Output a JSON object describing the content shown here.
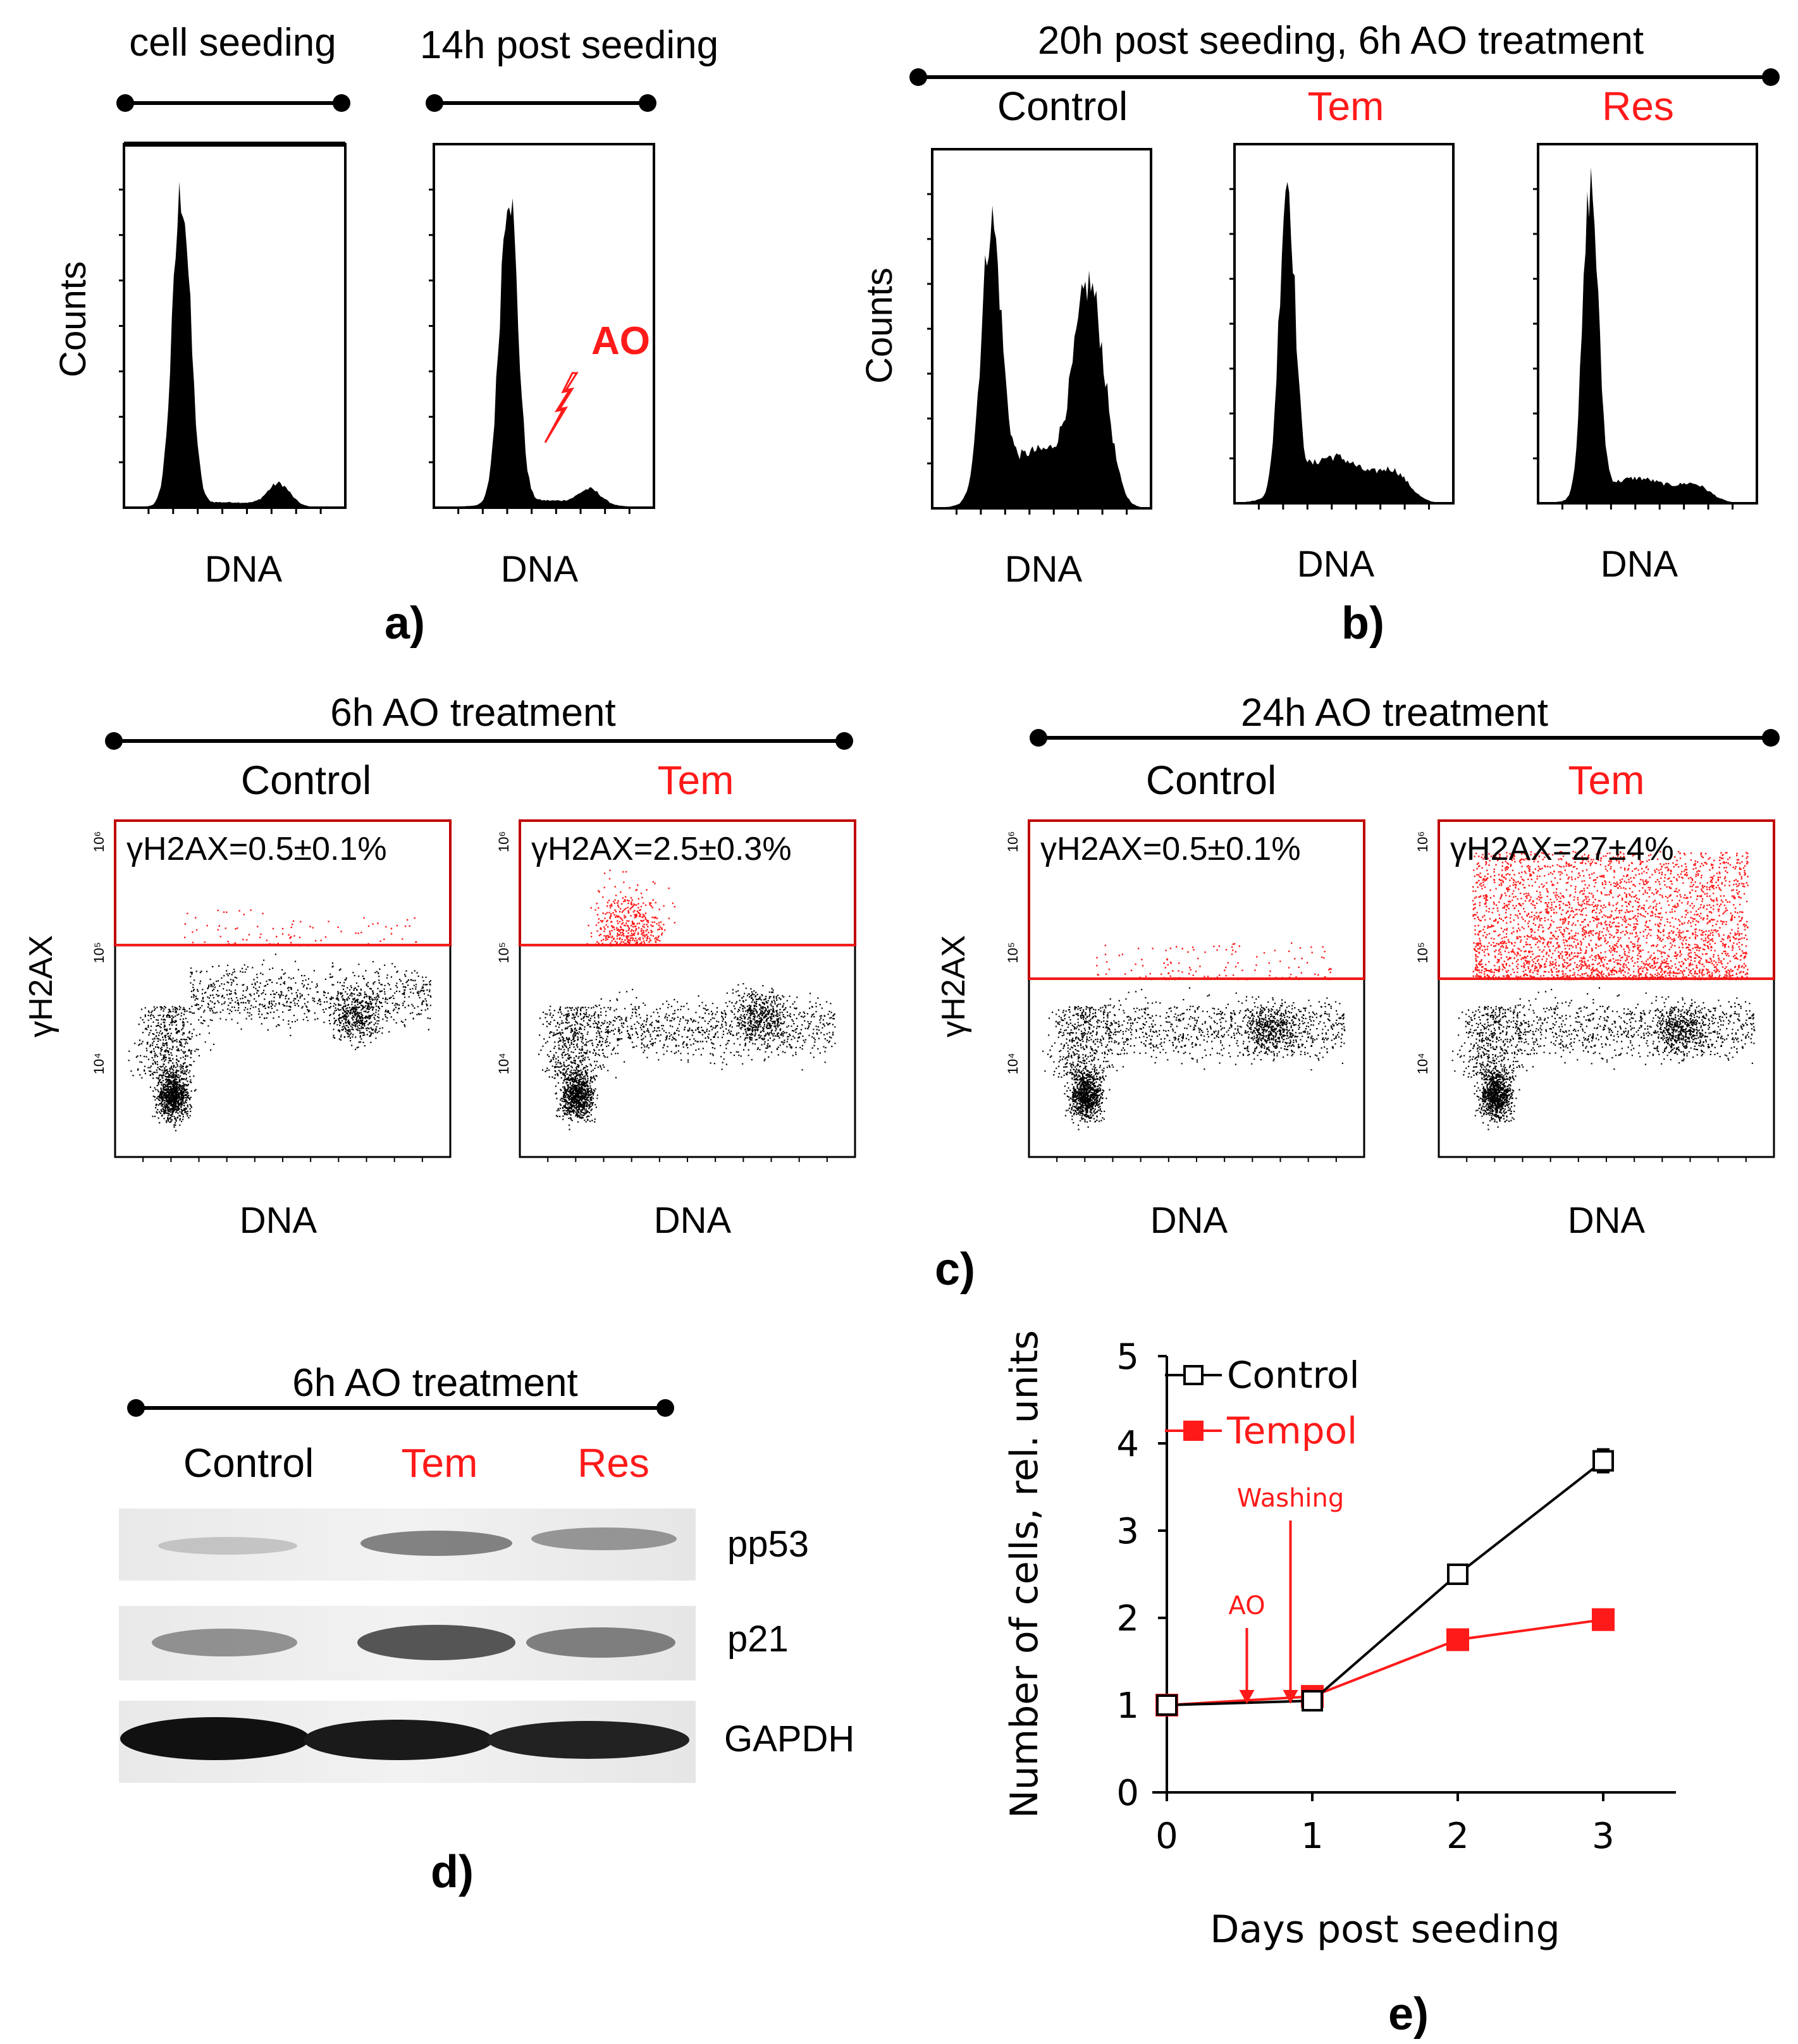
{
  "panel_a": {
    "headers": [
      "cell seeding",
      "14h post seeding"
    ],
    "ylabel": "Counts",
    "xlabels": [
      "DNA",
      "DNA"
    ],
    "annotation": "AO",
    "letter": "a)"
  },
  "panel_b": {
    "header": "20h post seeding, 6h AO treatment",
    "conditions": [
      "Control",
      "Tem",
      "Res"
    ],
    "ylabel": "Counts",
    "xlabels": [
      "DNA",
      "DNA",
      "DNA"
    ],
    "letter": "b)"
  },
  "panel_c": {
    "groups": [
      {
        "header": "6h AO treatment",
        "conditions": [
          "Control",
          "Tem"
        ],
        "values": [
          "γH2AX=0.5±0.1%",
          "γH2AX=2.5±0.3%"
        ]
      },
      {
        "header": "24h AO treatment",
        "conditions": [
          "Control",
          "Tem"
        ],
        "values": [
          "γH2AX=0.5±0.1%",
          "γH2AX=27±4%"
        ]
      }
    ],
    "ylabel": "γH2AX",
    "xlabel": "DNA",
    "ticks": [
      "10⁶",
      "10⁵",
      "10⁴"
    ],
    "letter": "c)"
  },
  "panel_d": {
    "header": "6h AO treatment",
    "lanes": [
      "Control",
      "Tem",
      "Res"
    ],
    "proteins": [
      "pp53",
      "p21",
      "GAPDH"
    ],
    "letter": "d)"
  },
  "panel_e": {
    "letter": "e)",
    "arrow_labels": [
      "AO",
      "Washing"
    ]
  },
  "colors": {
    "accent_red": "#ff1a1a",
    "black": "#000000"
  },
  "chart_data": {
    "type": "line",
    "x": [
      0,
      1,
      2,
      3
    ],
    "xlabel": "Days post seeding",
    "ylabel": "Number of cells, rel. units",
    "ylim": [
      0,
      5
    ],
    "xticks": [
      0,
      1,
      2,
      3
    ],
    "yticks": [
      0,
      1,
      2,
      3,
      4,
      5
    ],
    "series": [
      {
        "name": "Control",
        "values": [
          1.0,
          1.05,
          2.5,
          3.8
        ],
        "errors": [
          0.0,
          0.05,
          0.07,
          0.13
        ],
        "marker": "open-square",
        "color": "#000000"
      },
      {
        "name": "Tempol",
        "values": [
          1.0,
          1.1,
          1.75,
          1.98
        ],
        "errors": [
          0.0,
          0.04,
          0.05,
          0.08
        ],
        "marker": "filled-square",
        "color": "#ff1a1a"
      }
    ],
    "legend": "top-left",
    "annotations": [
      {
        "text": "AO",
        "x": 0.55
      },
      {
        "text": "Washing",
        "x": 0.85
      }
    ]
  }
}
